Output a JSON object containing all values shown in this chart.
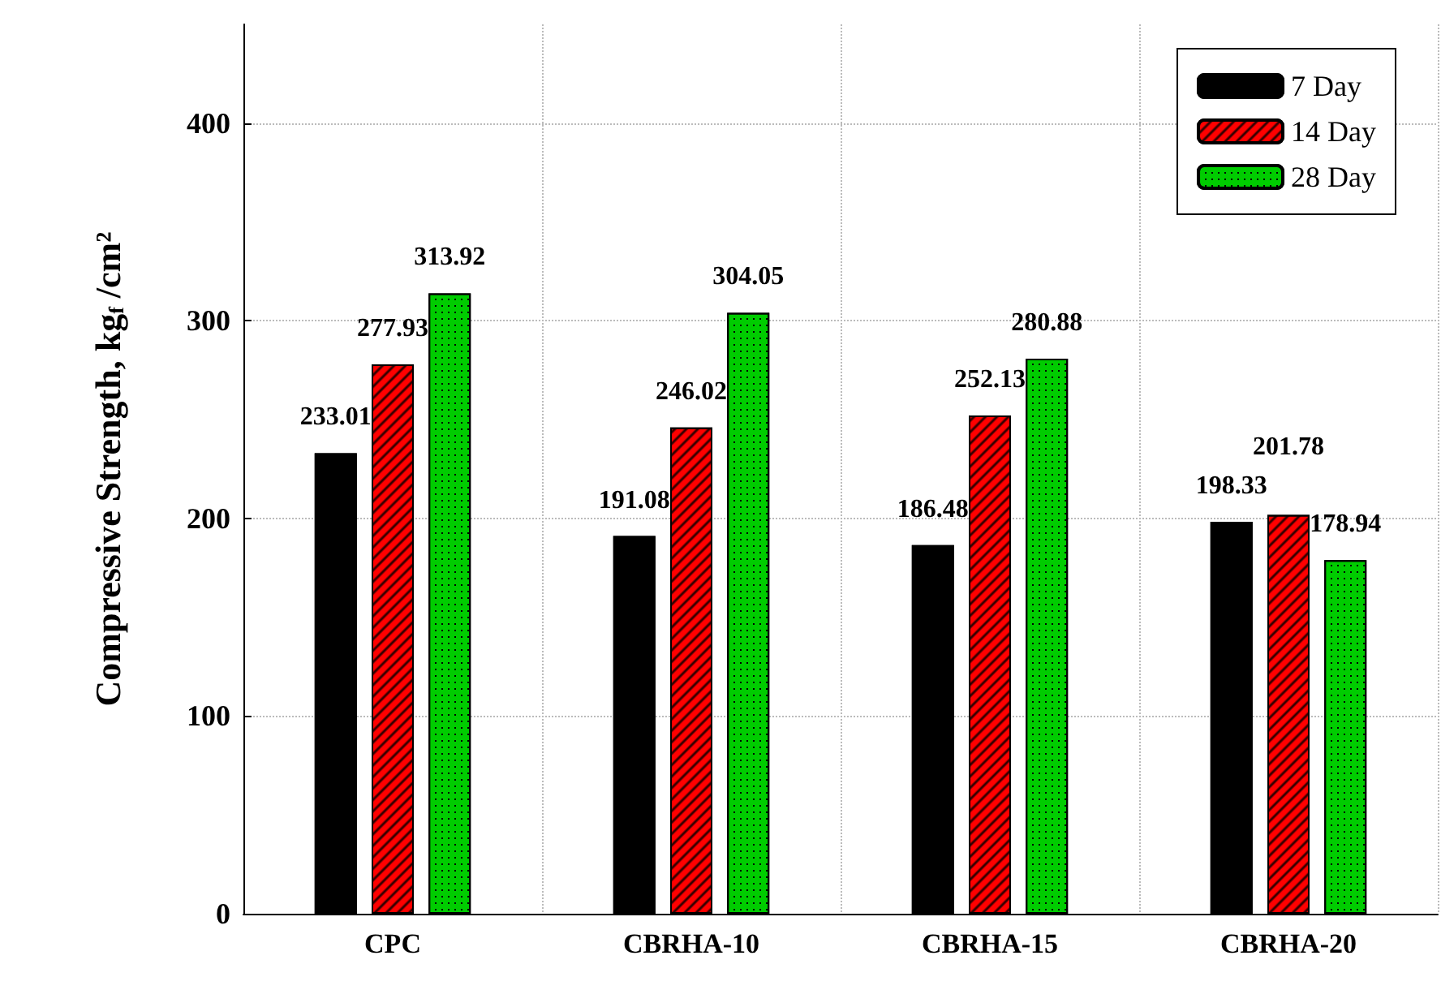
{
  "chart_data": {
    "type": "bar",
    "ylabel": "Compressive Strength, kg$_{f}$ /cm²",
    "categories": [
      "CPC",
      "CBRHA-10",
      "CBRHA-15",
      "CBRHA-20"
    ],
    "series": [
      {
        "name": "7 Day",
        "color": "#000000",
        "values": [
          233.01,
          191.08,
          186.48,
          198.33
        ]
      },
      {
        "name": "14 Day",
        "color": "#ff0000",
        "values": [
          277.93,
          246.02,
          252.13,
          201.78
        ]
      },
      {
        "name": "28 Day",
        "color": "#00cc00",
        "values": [
          313.92,
          304.05,
          280.88,
          178.94
        ]
      }
    ],
    "ylim": [
      0,
      450
    ],
    "yticks": [
      0,
      100,
      200,
      300,
      400
    ],
    "grid": true,
    "legend": "top right",
    "data_labels": true
  }
}
